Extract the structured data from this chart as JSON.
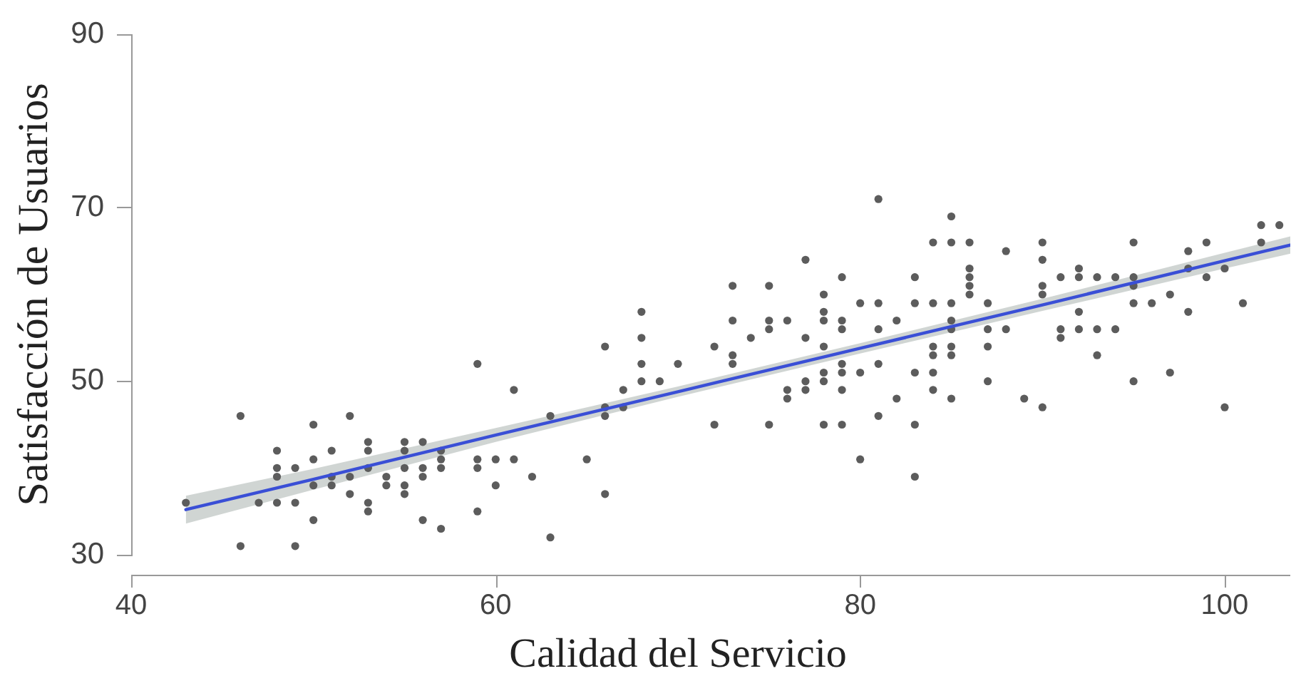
{
  "chart_data": {
    "type": "scatter",
    "xlabel": "Calidad del Servicio",
    "ylabel": "Satisfacción de Usuarios",
    "xlim": [
      40,
      103.6
    ],
    "ylim": [
      30,
      90
    ],
    "xticks": [
      40,
      60,
      80,
      100
    ],
    "yticks": [
      30,
      50,
      70,
      90
    ],
    "grid": false,
    "legend": false,
    "marker": "circle",
    "series": [
      {
        "color": "#5c5c5c",
        "x": [
          43,
          46,
          46,
          47,
          48,
          48,
          48,
          48,
          49,
          49,
          49,
          50,
          50,
          50,
          50,
          51,
          51,
          51,
          52,
          52,
          52,
          53,
          53,
          53,
          53,
          53,
          54,
          54,
          55,
          55,
          55,
          55,
          55,
          56,
          56,
          56,
          56,
          57,
          57,
          57,
          57,
          59,
          59,
          59,
          59,
          60,
          60,
          61,
          61,
          62,
          63,
          63,
          65,
          66,
          66,
          66,
          66,
          67,
          67,
          68,
          68,
          68,
          68,
          69,
          70,
          72,
          72,
          73,
          73,
          73,
          73,
          74,
          75,
          75,
          75,
          75,
          76,
          76,
          76,
          77,
          77,
          77,
          77,
          78,
          78,
          78,
          78,
          78,
          78,
          78,
          79,
          79,
          79,
          79,
          79,
          79,
          79,
          80,
          80,
          80,
          81,
          81,
          81,
          81,
          81,
          83,
          82,
          82,
          83,
          83,
          83,
          83,
          84,
          84,
          84,
          84,
          84,
          84,
          85,
          85,
          85,
          85,
          85,
          85,
          85,
          85,
          86,
          86,
          86,
          86,
          86,
          87,
          87,
          87,
          87,
          88,
          88,
          89,
          90,
          90,
          90,
          90,
          90,
          91,
          91,
          91,
          92,
          92,
          92,
          92,
          93,
          93,
          93,
          94,
          94,
          95,
          95,
          95,
          95,
          95,
          96,
          97,
          97,
          98,
          98,
          98,
          99,
          99,
          100,
          100,
          101,
          102,
          102,
          103
        ],
        "values": [
          36,
          46,
          31,
          36,
          42,
          40,
          39,
          36,
          40,
          36,
          31,
          45,
          41,
          38,
          34,
          42,
          39,
          38,
          46,
          39,
          37,
          43,
          42,
          40,
          36,
          35,
          39,
          38,
          43,
          42,
          40,
          38,
          37,
          43,
          40,
          39,
          34,
          42,
          41,
          40,
          33,
          52,
          41,
          40,
          35,
          41,
          38,
          49,
          41,
          39,
          46,
          32,
          41,
          54,
          47,
          46,
          37,
          49,
          47,
          58,
          55,
          52,
          50,
          50,
          52,
          54,
          45,
          61,
          57,
          53,
          52,
          55,
          61,
          57,
          56,
          45,
          57,
          49,
          48,
          64,
          55,
          50,
          49,
          60,
          58,
          57,
          54,
          51,
          50,
          45,
          62,
          57,
          56,
          52,
          51,
          49,
          45,
          59,
          51,
          41,
          71,
          59,
          56,
          52,
          46,
          39,
          57,
          48,
          62,
          59,
          51,
          45,
          66,
          59,
          54,
          53,
          51,
          49,
          69,
          66,
          59,
          57,
          56,
          54,
          53,
          48,
          66,
          63,
          62,
          61,
          60,
          59,
          56,
          54,
          50,
          65,
          56,
          48,
          66,
          64,
          61,
          60,
          47,
          62,
          56,
          55,
          63,
          62,
          58,
          56,
          62,
          56,
          53,
          62,
          56,
          66,
          62,
          61,
          59,
          50,
          59,
          60,
          51,
          65,
          63,
          58,
          66,
          62,
          63,
          47,
          59,
          68,
          66,
          68
        ]
      },
      {
        "type": "line",
        "color": "#3a4fd6",
        "marker": "none",
        "x": [
          43,
          50,
          60,
          70,
          80,
          90,
          100,
          103.6
        ],
        "values": [
          35.2,
          38.7,
          43.8,
          48.8,
          53.8,
          58.8,
          63.9,
          65.7
        ],
        "lower": [
          33.6,
          37.5,
          43.0,
          48.2,
          53.2,
          58.1,
          63.0,
          64.7
        ],
        "upper": [
          36.8,
          39.9,
          44.6,
          49.4,
          54.4,
          59.5,
          64.8,
          66.7
        ]
      }
    ]
  }
}
